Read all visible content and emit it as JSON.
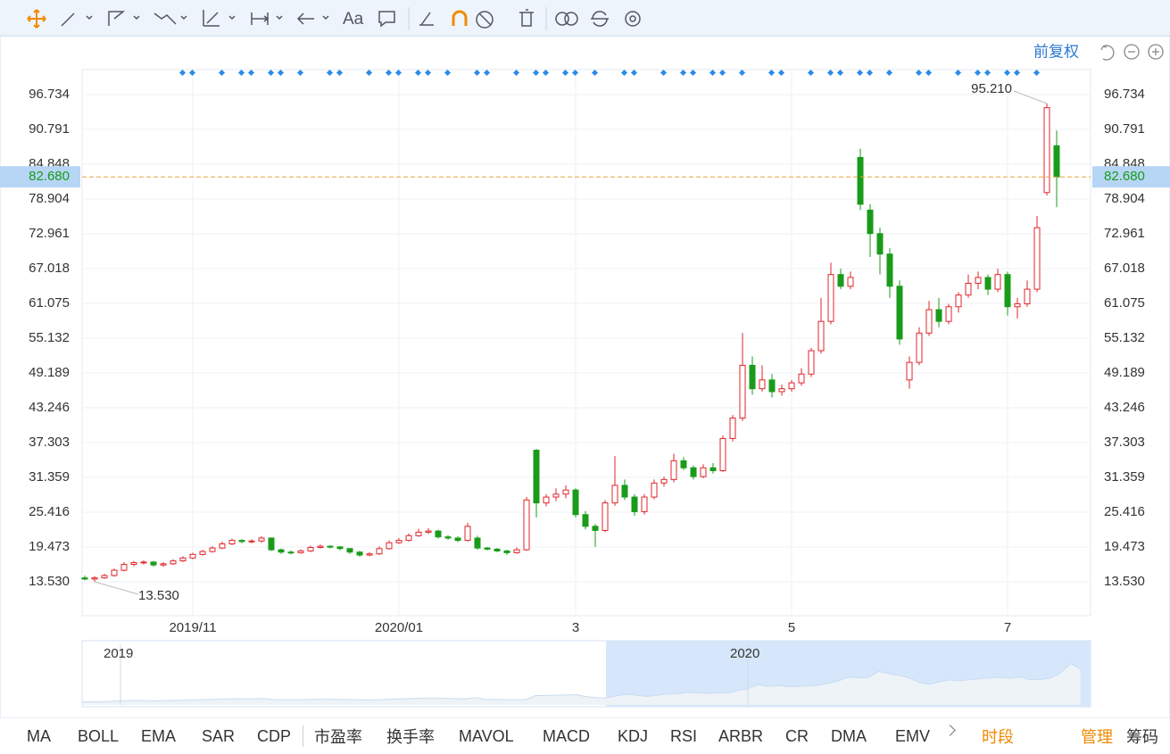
{
  "toolbar": {
    "font_button": "Aa"
  },
  "adjust_mode": "前复权",
  "chart_data": {
    "type": "candlestick",
    "ylim": [
      7.74,
      101.0
    ],
    "yticks": [
      {
        "value": 13.53,
        "label": "13.530"
      },
      19.473,
      25.416,
      31.359,
      37.303,
      43.246,
      49.189,
      55.132,
      61.075,
      67.018,
      72.961,
      78.904,
      84.848,
      90.791,
      96.734
    ],
    "categories": [
      null,
      null,
      null,
      null,
      null,
      null,
      null,
      null,
      null,
      null,
      null,
      "2019/11",
      null,
      null,
      null,
      null,
      null,
      null,
      null,
      null,
      null,
      null,
      null,
      null,
      null,
      null,
      null,
      null,
      null,
      null,
      null,
      null,
      "2020/01",
      null,
      null,
      null,
      null,
      null,
      null,
      null,
      null,
      null,
      null,
      null,
      null,
      null,
      null,
      null,
      null,
      null,
      "3",
      null,
      null,
      null,
      null,
      null,
      null,
      null,
      null,
      null,
      null,
      null,
      null,
      null,
      null,
      null,
      null,
      null,
      null,
      null,
      null,
      null,
      "5",
      null,
      null,
      null,
      null,
      null,
      null,
      null,
      null,
      null,
      null,
      null,
      null,
      null,
      null,
      null,
      null,
      null,
      null,
      null,
      null,
      null,
      "7",
      null,
      null,
      null,
      null,
      null
    ],
    "ohlc": [
      [
        14.2,
        14.6,
        13.8,
        14
      ],
      [
        14,
        14.5,
        13.53,
        14.2
      ],
      [
        14.2,
        14.9,
        14,
        14.6
      ],
      [
        14.6,
        15.8,
        14.4,
        15.5
      ],
      [
        15.5,
        16.9,
        15.3,
        16.5
      ],
      [
        16.5,
        17.1,
        16.2,
        16.8
      ],
      [
        16.8,
        17.2,
        16.5,
        16.9
      ],
      [
        16.9,
        17.1,
        16.1,
        16.4
      ],
      [
        16.4,
        16.9,
        16.1,
        16.6
      ],
      [
        16.6,
        17.4,
        16.4,
        17.1
      ],
      [
        17.1,
        17.9,
        16.9,
        17.6
      ],
      [
        17.6,
        18.5,
        17.4,
        18.2
      ],
      [
        18.2,
        19,
        18,
        18.7
      ],
      [
        18.7,
        19.6,
        18.5,
        19.3
      ],
      [
        19.3,
        20.4,
        19.1,
        20
      ],
      [
        20,
        20.9,
        19.8,
        20.6
      ],
      [
        20.6,
        20.8,
        20.1,
        20.4
      ],
      [
        20.4,
        20.8,
        20.1,
        20.5
      ],
      [
        20.5,
        21.3,
        20.2,
        21
      ],
      [
        21,
        21.1,
        18.8,
        19
      ],
      [
        19,
        19.2,
        18.3,
        18.6
      ],
      [
        18.6,
        18.9,
        18.2,
        18.5
      ],
      [
        18.5,
        19.1,
        18.3,
        18.8
      ],
      [
        18.8,
        19.7,
        18.6,
        19.4
      ],
      [
        19.4,
        19.9,
        19.2,
        19.6
      ],
      [
        19.6,
        19.8,
        19.2,
        19.5
      ],
      [
        19.5,
        19.6,
        18.9,
        19.2
      ],
      [
        19.2,
        19.3,
        18.3,
        18.6
      ],
      [
        18.6,
        18.8,
        17.8,
        18.1
      ],
      [
        18.1,
        18.6,
        17.9,
        18.3
      ],
      [
        18.3,
        19.6,
        18.1,
        19.2
      ],
      [
        19.2,
        20.6,
        19,
        20.2
      ],
      [
        20.2,
        21,
        20,
        20.6
      ],
      [
        20.6,
        21.8,
        20.4,
        21.4
      ],
      [
        21.4,
        22.6,
        21.2,
        22
      ],
      [
        22,
        22.7,
        21.7,
        22.2
      ],
      [
        22.2,
        22.4,
        20.9,
        21.2
      ],
      [
        21.2,
        21.5,
        20.7,
        21
      ],
      [
        21,
        21.3,
        20.3,
        20.6
      ],
      [
        20.6,
        23.6,
        20.4,
        23
      ],
      [
        21,
        21.4,
        19,
        19.3
      ],
      [
        19.3,
        19.5,
        18.9,
        19.1
      ],
      [
        19.1,
        19.3,
        18.6,
        18.8
      ],
      [
        18.8,
        19,
        18.1,
        18.5
      ],
      [
        18.5,
        19.4,
        18.3,
        19
      ],
      [
        19,
        28,
        18.8,
        27.5
      ],
      [
        36,
        36.2,
        24.5,
        27
      ],
      [
        27,
        28.5,
        26.4,
        28
      ],
      [
        28,
        29.5,
        27.3,
        28.5
      ],
      [
        28.5,
        30,
        27.8,
        29.2
      ],
      [
        29.2,
        29.5,
        24.5,
        25
      ],
      [
        25,
        25.6,
        22.5,
        23
      ],
      [
        23,
        23.4,
        19.5,
        22.3
      ],
      [
        22.3,
        27.5,
        22,
        27
      ],
      [
        27,
        35,
        26.5,
        30
      ],
      [
        30,
        31,
        27.5,
        28
      ],
      [
        28,
        28.5,
        24.8,
        25.5
      ],
      [
        25.5,
        28.5,
        25,
        28
      ],
      [
        28,
        31,
        27.6,
        30.4
      ],
      [
        30.4,
        31.5,
        29.8,
        31
      ],
      [
        31,
        35.4,
        30.5,
        34.2
      ],
      [
        34.2,
        34.8,
        32.6,
        33
      ],
      [
        33,
        33.4,
        31,
        31.5
      ],
      [
        31.5,
        33.6,
        31.2,
        33
      ],
      [
        33,
        33.8,
        32,
        32.5
      ],
      [
        32.5,
        38.5,
        32.3,
        38
      ],
      [
        38,
        42,
        37.5,
        41.5
      ],
      [
        41.5,
        56,
        41,
        50.5
      ],
      [
        50.5,
        52,
        45.5,
        46.5
      ],
      [
        46.5,
        50.5,
        46,
        48
      ],
      [
        48,
        49,
        45,
        46
      ],
      [
        46,
        47.2,
        45.3,
        46.5
      ],
      [
        46.5,
        48,
        46,
        47.5
      ],
      [
        47.5,
        50,
        47,
        49
      ],
      [
        49,
        53.5,
        48.5,
        53
      ],
      [
        53,
        62,
        52.5,
        58
      ],
      [
        58,
        68,
        57.5,
        66
      ],
      [
        66,
        67,
        63.5,
        64
      ],
      [
        64,
        66.5,
        63.5,
        65.5
      ],
      [
        86,
        87.5,
        77,
        78
      ],
      [
        77,
        78,
        69,
        73
      ],
      [
        73,
        74,
        66,
        69.5
      ],
      [
        69.5,
        70.5,
        62,
        64
      ],
      [
        64,
        65,
        54,
        55
      ],
      [
        48,
        52,
        46.5,
        51
      ],
      [
        51,
        57,
        50.5,
        56
      ],
      [
        56,
        61.5,
        55.5,
        60
      ],
      [
        60,
        62,
        57,
        58
      ],
      [
        58,
        61,
        57.5,
        60.5
      ],
      [
        60.5,
        63,
        59.5,
        62.5
      ],
      [
        62.5,
        66,
        62,
        64.5
      ],
      [
        64.5,
        66.5,
        63.5,
        65.5
      ],
      [
        65.5,
        66,
        62.5,
        63.5
      ],
      [
        63.5,
        67,
        63,
        66
      ],
      [
        66,
        66.5,
        59,
        60.5
      ],
      [
        60.5,
        62,
        58.5,
        61
      ],
      [
        61,
        65,
        60.5,
        63.5
      ],
      [
        63.5,
        76,
        63,
        74
      ],
      [
        80,
        95.21,
        79.5,
        94.5
      ],
      [
        88,
        90.6,
        77.5,
        82.68
      ]
    ],
    "up_color": "#e0262b",
    "down_color": "#1a9b1a",
    "last_price": {
      "value": 82.68,
      "label": "82.680"
    },
    "max_label": {
      "value": 95.21,
      "label": "95.210"
    },
    "min_label": {
      "value": 13.53,
      "label": "13.530"
    },
    "navigator": {
      "labels": [
        "2019",
        "2020"
      ]
    }
  },
  "indicators": [
    "MA",
    "BOLL",
    "EMA",
    "SAR",
    "CDP",
    "市盈率",
    "换手率",
    "MAVOL",
    "MACD",
    "KDJ",
    "RSI",
    "ARBR",
    "CR",
    "DMA",
    "EMV"
  ],
  "period": "时段",
  "manage": "管理",
  "chips": "筹码"
}
